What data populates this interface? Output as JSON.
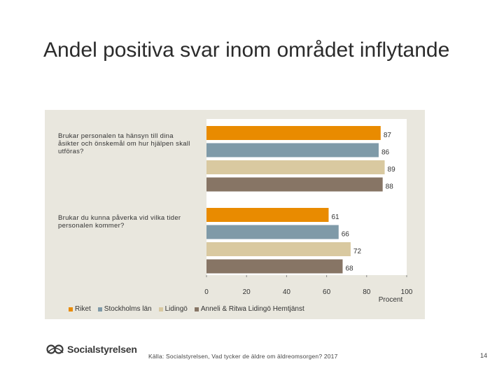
{
  "slide": {
    "title": "Andel positiva svar inom området inflytande",
    "source": "Källa: Socialstyrelsen, Vad tycker de äldre om äldreomsorgen? 2017",
    "page_number": "14",
    "logo_text": "Socialstyrelsen"
  },
  "chart_data": {
    "type": "bar",
    "orientation": "horizontal",
    "categories": [
      "Brukar personalen ta hänsyn till dina åsikter och önskemål om hur hjälpen skall utföras?",
      "Brukar du kunna påverka vid vilka tider personalen kommer?"
    ],
    "series": [
      {
        "name": "Riket",
        "color": "#e98b00",
        "values": [
          87,
          61
        ]
      },
      {
        "name": "Stockholms län",
        "color": "#7f9aa8",
        "values": [
          86,
          66
        ]
      },
      {
        "name": "Lidingö",
        "color": "#d9c9a0",
        "values": [
          89,
          72
        ]
      },
      {
        "name": "Anneli & Ritwa Lidingö Hemtjänst",
        "color": "#877565",
        "values": [
          88,
          68
        ]
      }
    ],
    "xlim": [
      0,
      100
    ],
    "xticks": [
      "0",
      "20",
      "40",
      "60",
      "80",
      "100"
    ],
    "xlabel": "Procent",
    "title": "",
    "legend_position": "bottom-left"
  }
}
